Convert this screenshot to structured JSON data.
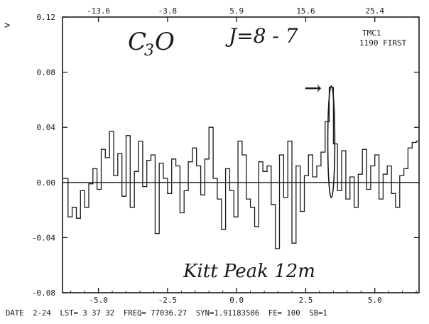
{
  "chart_data": {
    "type": "line",
    "style": "step",
    "title": "",
    "xlabel": "",
    "ylabel": "",
    "xlim": [
      -6.3,
      6.6
    ],
    "ylim": [
      -0.08,
      0.12
    ],
    "x_ticks": [
      -5.0,
      -2.5,
      0.0,
      2.5,
      5.0
    ],
    "x_tick_labels": [
      "-5.0",
      "-2.5",
      "0.0",
      "2.5",
      "5.0"
    ],
    "y_ticks": [
      0.12,
      0.08,
      0.04,
      0.0,
      -0.04,
      -0.08
    ],
    "y_tick_labels": [
      "0.12",
      "0.08",
      "0.04",
      "0.00",
      "-0.04",
      "-0.08"
    ],
    "top_ticks": [
      -13.6,
      -3.8,
      5.9,
      15.6,
      25.4
    ],
    "top_tick_labels": [
      "-13.6",
      "-3.8",
      "5.9",
      "15.6",
      "25.4"
    ],
    "series": [
      {
        "x": [
          -6.3,
          -6.1,
          -5.95,
          -5.8,
          -5.65,
          -5.5,
          -5.35,
          -5.2,
          -5.05,
          -4.9,
          -4.75,
          -4.6,
          -4.45,
          -4.3,
          -4.15,
          -4.0,
          -3.85,
          -3.7,
          -3.55,
          -3.4,
          -3.25,
          -3.1,
          -2.95,
          -2.8,
          -2.65,
          -2.5,
          -2.35,
          -2.2,
          -2.05,
          -1.9,
          -1.75,
          -1.6,
          -1.45,
          -1.3,
          -1.15,
          -1.0,
          -0.85,
          -0.7,
          -0.55,
          -0.4,
          -0.25,
          -0.1,
          0.05,
          0.2,
          0.35,
          0.5,
          0.65,
          0.8,
          0.95,
          1.1,
          1.25,
          1.4,
          1.55,
          1.7,
          1.85,
          2.0,
          2.15,
          2.3,
          2.45,
          2.6,
          2.75,
          2.9,
          3.05,
          3.2,
          3.35,
          3.5,
          3.65,
          3.8,
          3.95,
          4.1,
          4.25,
          4.4,
          4.55,
          4.7,
          4.85,
          5.0,
          5.15,
          5.3,
          5.45,
          5.6,
          5.75,
          5.9,
          6.05,
          6.2,
          6.35,
          6.5
        ],
        "y": [
          0.003,
          -0.025,
          -0.018,
          -0.026,
          -0.006,
          -0.018,
          -0.001,
          0.01,
          -0.005,
          0.024,
          0.018,
          0.037,
          0.005,
          0.021,
          -0.01,
          0.034,
          -0.018,
          0.008,
          0.03,
          -0.003,
          0.016,
          0.02,
          -0.037,
          0.014,
          0.003,
          -0.008,
          0.017,
          0.012,
          -0.022,
          -0.006,
          0.015,
          0.025,
          0.012,
          -0.009,
          0.017,
          0.04,
          0.003,
          -0.012,
          -0.034,
          0.01,
          -0.006,
          -0.025,
          0.03,
          0.02,
          -0.012,
          -0.018,
          -0.032,
          0.015,
          0.008,
          0.012,
          -0.016,
          -0.048,
          0.02,
          -0.011,
          0.03,
          -0.044,
          0.012,
          -0.021,
          0.005,
          0.02,
          0.004,
          0.012,
          0.022,
          0.044,
          0.069,
          0.028,
          -0.006,
          0.023,
          -0.012,
          0.004,
          -0.018,
          0.006,
          0.024,
          -0.005,
          0.012,
          0.02,
          -0.012,
          0.006,
          0.012,
          -0.008,
          -0.018,
          0.005,
          0.01,
          0.025,
          0.029,
          0.03
        ]
      }
    ],
    "annotations": {
      "molecule_main": "C",
      "molecule_sub": "3",
      "molecule_end": "O",
      "transition": "J=8 - 7",
      "source": "TMC1",
      "scan": "1190 FIRST",
      "caret": ">",
      "site": "Kitt Peak 12m",
      "arrow": "→"
    },
    "footer": "DATE  2-24  LST= 3 37 32  FREQ= 77036.27  SYN=1.91183506  FE= 100  SB=1",
    "colors": {
      "ink": "#1a1a1a",
      "paper": "#ffffff"
    }
  }
}
